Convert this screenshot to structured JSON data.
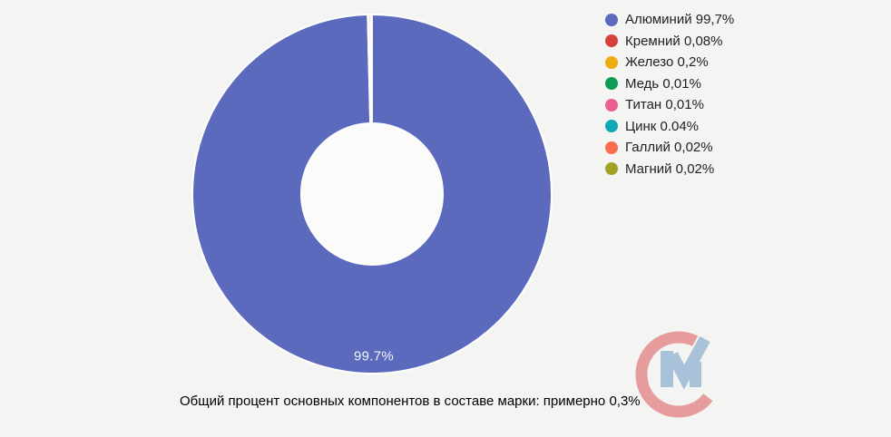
{
  "chart_data": {
    "type": "pie",
    "subtype": "donut",
    "title": "",
    "categories": [
      "Алюминий",
      "Кремний",
      "Железо",
      "Медь",
      "Титан",
      "Цинк",
      "Галлий",
      "Магний"
    ],
    "values": [
      99.7,
      0.08,
      0.2,
      0.01,
      0.01,
      0.04,
      0.02,
      0.02
    ],
    "value_labels": [
      "99,7%",
      "0,08%",
      "0,2%",
      "0,01%",
      "0,01%",
      "0.04%",
      "0,02%",
      "0,02%"
    ],
    "colors": [
      "#5c6abd",
      "#d5423e",
      "#f0ad13",
      "#109c58",
      "#ea5e92",
      "#10a8b4",
      "#fa6e4e",
      "#a2a325"
    ],
    "legend_labels": [
      "Алюминий 99,7%",
      "Кремний 0,08%",
      "Железо 0,2%",
      "Медь 0,01%",
      "Титан 0,01%",
      "Цинк 0.04%",
      "Галлий 0,02%",
      "Магний 0,02%"
    ],
    "legend_position": "right",
    "start_angle_deg": 0,
    "clockwise": true,
    "slice_label": "99.7%",
    "caption": "Общий процент основных компонентов в составе марки: примерно 0,3%",
    "background": "#f4f4f3",
    "hole_color": "#fbfbfa"
  },
  "logo": {
    "letters": "СМ",
    "c_color": "#e69c9c",
    "m_color": "#a8c3d9"
  }
}
